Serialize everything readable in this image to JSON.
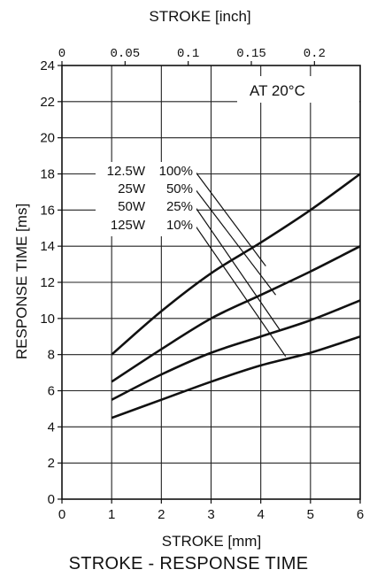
{
  "chart_data": {
    "type": "line",
    "title": "STROKE - RESPONSE TIME",
    "xlabel": "STROKE [mm]",
    "x2label": "STROKE [inch]",
    "ylabel": "RESPONSE TIME [ms]",
    "annotation": "AT 20°C",
    "xlim": [
      0,
      6
    ],
    "ylim": [
      0,
      24
    ],
    "x_ticks": [
      "0",
      "1",
      "2",
      "3",
      "4",
      "5",
      "6"
    ],
    "y_ticks": [
      "0",
      "2",
      "4",
      "6",
      "8",
      "10",
      "12",
      "14",
      "16",
      "18",
      "20",
      "22",
      "24"
    ],
    "x2_ticks": [
      {
        "value_inch": 0,
        "label": "0"
      },
      {
        "value_inch": 0.05,
        "label": "0.05"
      },
      {
        "value_inch": 0.1,
        "label": "0.1"
      },
      {
        "value_inch": 0.15,
        "label": "0.15"
      },
      {
        "value_inch": 0.2,
        "label": "0.2"
      }
    ],
    "grid": true,
    "series": [
      {
        "name": "12.5W 100%",
        "power": "12.5W",
        "duty": "100%",
        "x": [
          1,
          2,
          3,
          4,
          5,
          6
        ],
        "values": [
          8.0,
          10.4,
          12.5,
          14.2,
          16.0,
          18.0
        ]
      },
      {
        "name": "25W 50%",
        "power": "25W",
        "duty": "50%",
        "x": [
          1,
          2,
          3,
          4,
          5,
          6
        ],
        "values": [
          6.5,
          8.3,
          10.0,
          11.3,
          12.6,
          14.0
        ]
      },
      {
        "name": "50W 25%",
        "power": "50W",
        "duty": "25%",
        "x": [
          1,
          2,
          3,
          4,
          5,
          6
        ],
        "values": [
          5.5,
          6.9,
          8.1,
          9.0,
          9.9,
          11.0
        ]
      },
      {
        "name": "125W 10%",
        "power": "125W",
        "duty": "10%",
        "x": [
          1,
          2,
          3,
          4,
          5,
          6
        ],
        "values": [
          4.5,
          5.5,
          6.5,
          7.4,
          8.1,
          9.0
        ]
      }
    ],
    "leader_targets": [
      {
        "x": 4.1,
        "y": 12.9
      },
      {
        "x": 4.3,
        "y": 11.3
      },
      {
        "x": 4.4,
        "y": 9.3
      },
      {
        "x": 4.5,
        "y": 7.9
      }
    ],
    "colors": {
      "line": "#111111",
      "grid": "#222222",
      "background": "#ffffff"
    }
  }
}
